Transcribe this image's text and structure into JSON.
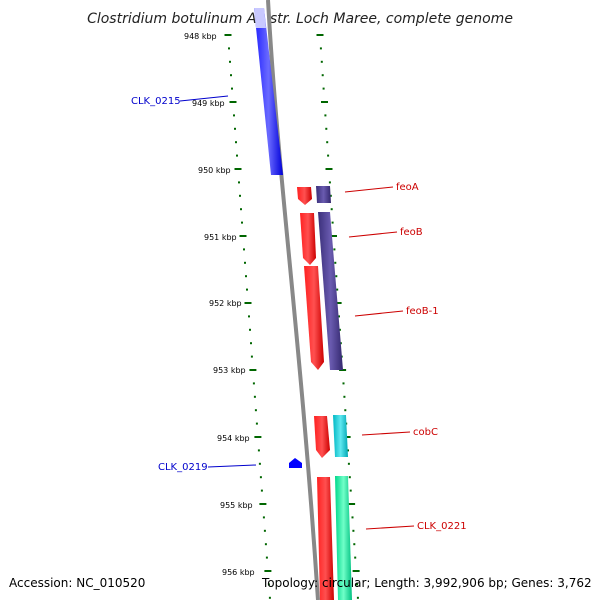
{
  "title": "Clostridium botulinum A3 str. Loch Maree, complete genome",
  "footer": {
    "accession": "Accession: NC_010520",
    "topology": "Topology: circular; Length: 3,992,906 bp; Genes: 3,762"
  },
  "ticks": [
    "948 kbp",
    "949 kbp",
    "950 kbp",
    "951 kbp",
    "952 kbp",
    "953 kbp",
    "954 kbp",
    "955 kbp",
    "956 kbp"
  ],
  "genes": [
    {
      "label": "CLK_0215",
      "color": "#0000cc"
    },
    {
      "label": "CLK_0219",
      "color": "#0000cc"
    },
    {
      "label": "feoA",
      "color": "#cc0000"
    },
    {
      "label": "feoB",
      "color": "#cc0000"
    },
    {
      "label": "feoB-1",
      "color": "#cc0000"
    },
    {
      "label": "cobC",
      "color": "#cc0000"
    },
    {
      "label": "CLK_0221",
      "color": "#cc0000"
    }
  ],
  "colors": {
    "backbone": "#888888",
    "tick": "#006600",
    "blue_feature": "#0000ff",
    "red_feature": "#ff0000",
    "purple_feature": "#4a3a8c",
    "cyan_feature": "#00c8d0",
    "green_feature": "#00e69a"
  }
}
